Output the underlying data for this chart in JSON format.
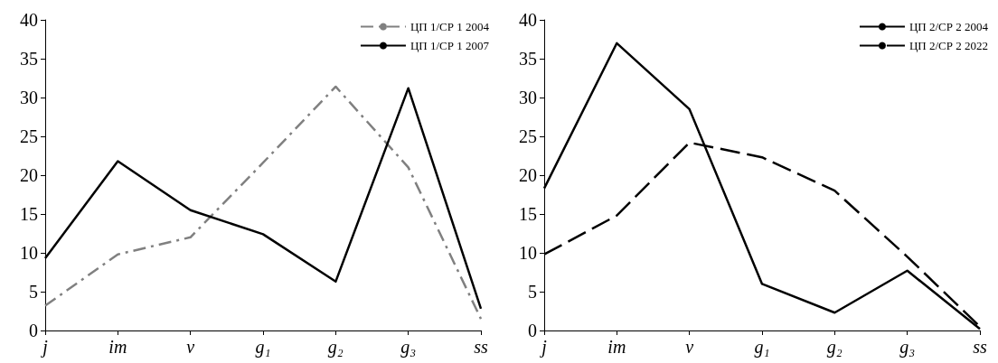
{
  "chart_data": [
    {
      "type": "line",
      "categories": [
        "j",
        "im",
        "v",
        "g₁",
        "g₂",
        "g₃",
        "ss"
      ],
      "ylim": [
        0,
        40
      ],
      "yticks": [
        0,
        5,
        10,
        15,
        20,
        25,
        30,
        35,
        40
      ],
      "grid": false,
      "legend": "top right",
      "marker": "none",
      "series": [
        {
          "name": "ЦП 1/СР 1 2004",
          "color": "#808080",
          "line_style": "dashdot",
          "values": [
            3.2,
            9.8,
            12,
            21.6,
            31.4,
            21,
            1.5
          ]
        },
        {
          "name": "ЦП 1/СР 1 2007",
          "color": "#000000",
          "line_style": "solid",
          "values": [
            9.3,
            21.8,
            15.5,
            12.4,
            6.3,
            31.2,
            2.8
          ]
        }
      ]
    },
    {
      "type": "line",
      "categories": [
        "j",
        "im",
        "v",
        "g₁",
        "g₂",
        "g₃",
        "ss"
      ],
      "ylim": [
        0,
        40
      ],
      "yticks": [
        0,
        5,
        10,
        15,
        20,
        25,
        30,
        35,
        40
      ],
      "grid": false,
      "legend": "top right",
      "marker": "none",
      "series": [
        {
          "name": "ЦП 2/СР 2 2004",
          "color": "#000000",
          "line_style": "solid",
          "values": [
            18.3,
            37,
            28.5,
            6,
            2.3,
            7.7,
            0.2
          ]
        },
        {
          "name": "ЦП 2/СР 2 2022",
          "color": "#000000",
          "line_style": "dashed",
          "values": [
            9.8,
            14.8,
            24.2,
            22.3,
            18,
            9.5,
            0.5
          ]
        }
      ]
    }
  ]
}
